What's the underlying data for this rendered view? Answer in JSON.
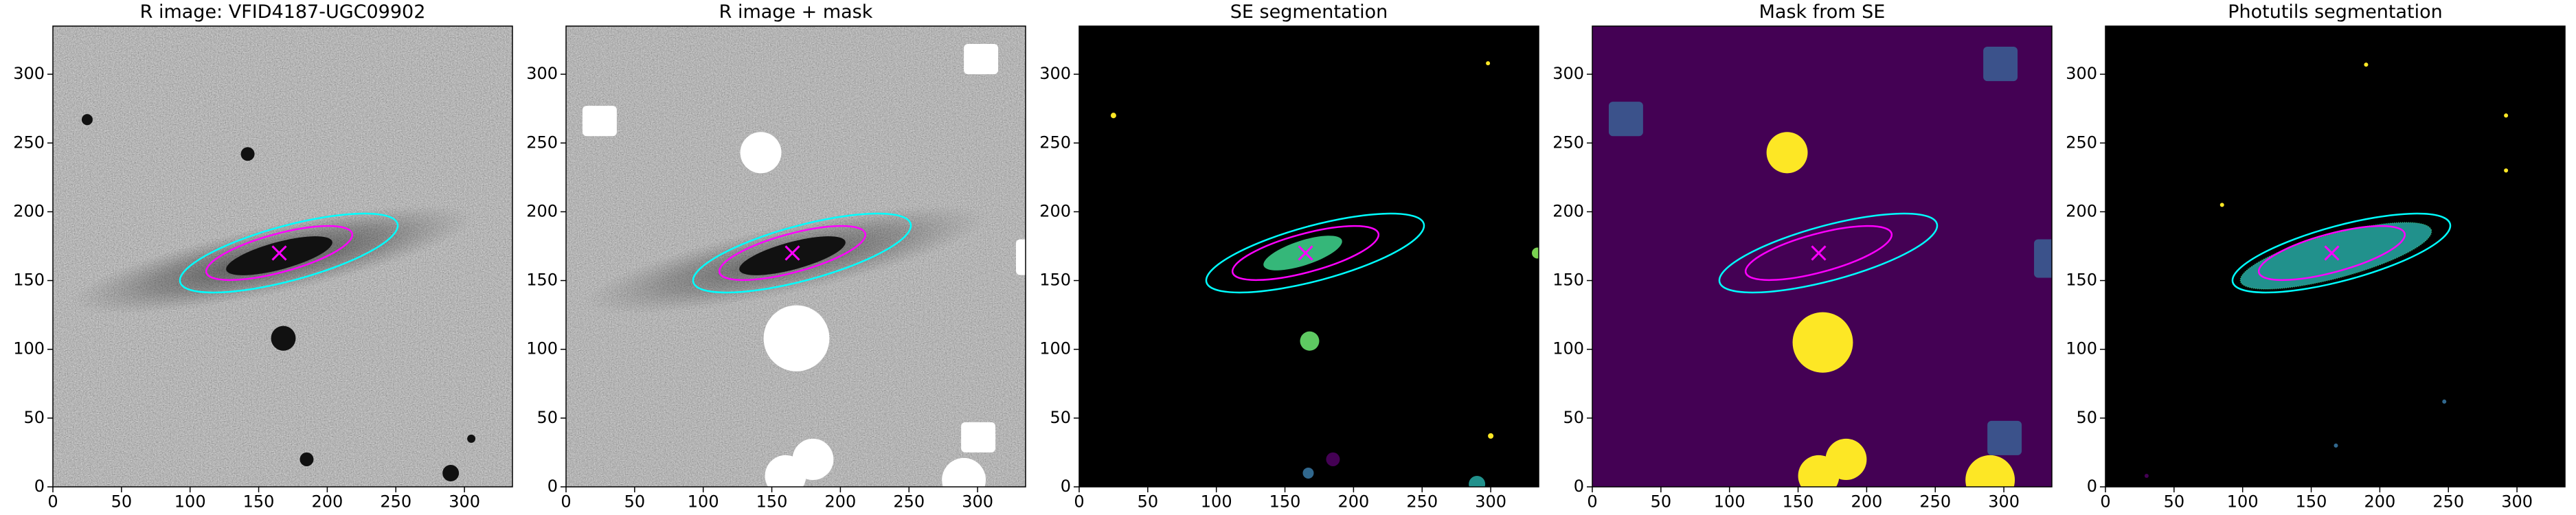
{
  "chart_data": [
    {
      "type": "image",
      "title": "R image: VFID4187-UGC09902",
      "xlim": [
        0,
        335
      ],
      "ylim": [
        0,
        335
      ],
      "xticks": [
        0,
        50,
        100,
        150,
        200,
        250,
        300
      ],
      "yticks": [
        0,
        50,
        100,
        150,
        200,
        250,
        300
      ]
    },
    {
      "type": "image",
      "title": "R image + mask",
      "xlim": [
        0,
        335
      ],
      "ylim": [
        0,
        335
      ],
      "xticks": [
        0,
        50,
        100,
        150,
        200,
        250,
        300
      ],
      "yticks": [
        0,
        50,
        100,
        150,
        200,
        250,
        300
      ]
    },
    {
      "type": "image",
      "title": "SE segmentation",
      "xlim": [
        0,
        335
      ],
      "ylim": [
        0,
        335
      ],
      "xticks": [
        0,
        50,
        100,
        150,
        200,
        250,
        300
      ],
      "yticks": [
        0,
        50,
        100,
        150,
        200,
        250,
        300
      ]
    },
    {
      "type": "image",
      "title": "Mask from SE",
      "xlim": [
        0,
        335
      ],
      "ylim": [
        0,
        335
      ],
      "xticks": [
        0,
        50,
        100,
        150,
        200,
        250,
        300
      ],
      "yticks": [
        0,
        50,
        100,
        150,
        200,
        250,
        300
      ]
    },
    {
      "type": "image",
      "title": "Photutils segmentation",
      "xlim": [
        0,
        335
      ],
      "ylim": [
        0,
        335
      ],
      "xticks": [
        0,
        50,
        100,
        150,
        200,
        250,
        300
      ],
      "yticks": [
        0,
        50,
        100,
        150,
        200,
        250,
        300
      ]
    }
  ]
}
